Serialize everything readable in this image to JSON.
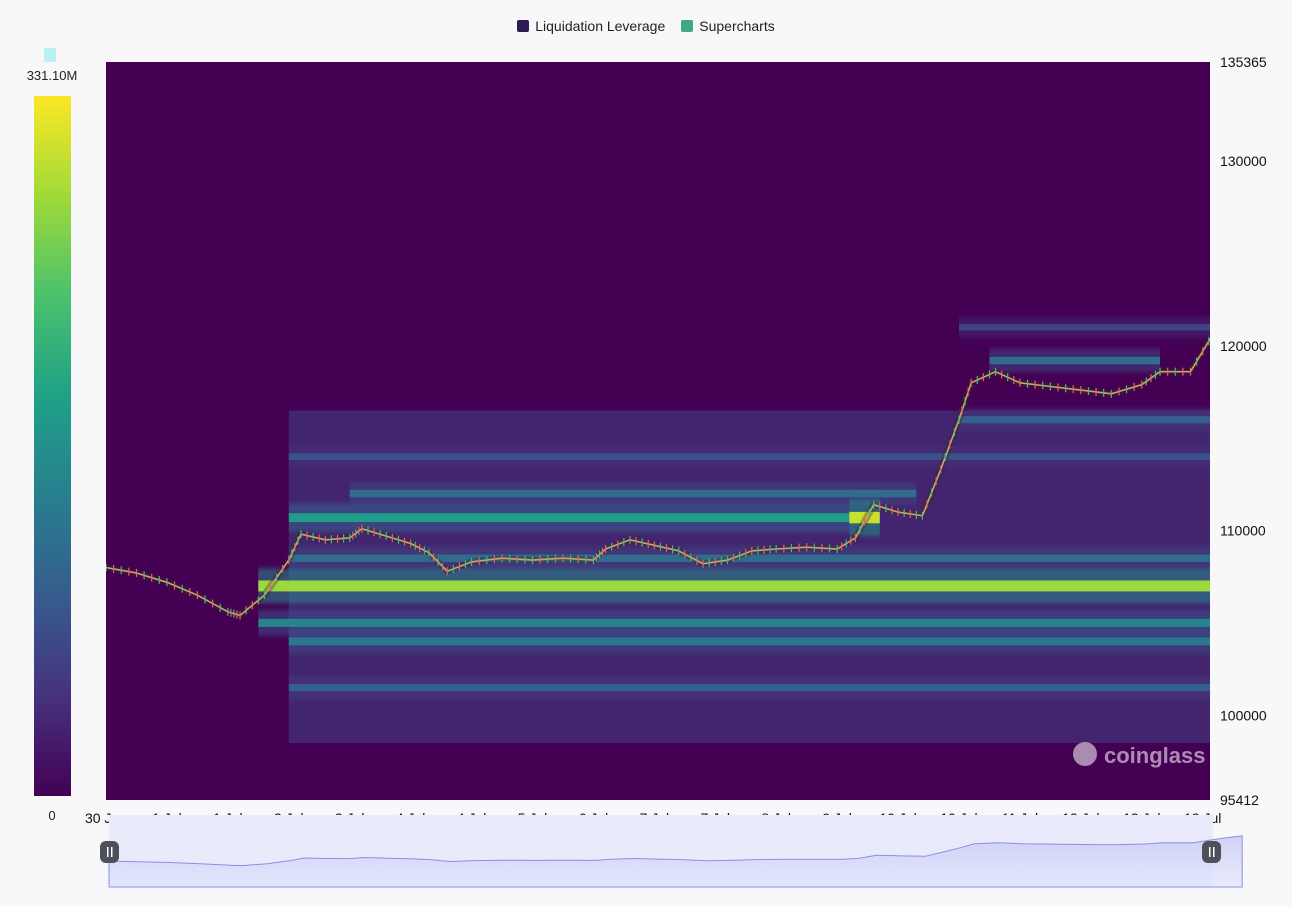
{
  "legend": [
    {
      "label": "Liquidation Leverage",
      "color": "#2e1a54"
    },
    {
      "label": "Supercharts",
      "color": "#3fa886"
    }
  ],
  "colorbar": {
    "max_label": "331.10M",
    "min_label": "0"
  },
  "watermark": "coinglass",
  "chart_data": {
    "type": "heatmap",
    "title": "",
    "xlabel": "",
    "ylabel": "",
    "ylim": [
      95412,
      135365
    ],
    "y_ticks": [
      95412,
      100000,
      110000,
      120000,
      130000,
      135365
    ],
    "x_tick_labels": [
      "30 Jun",
      "1 Jul",
      "1 Jul",
      "2 Jul",
      "3 Jul",
      "4 Jul",
      "4 Jul",
      "5 Jul",
      "6 Jul",
      "7 Jul",
      "7 Jul",
      "8 Jul",
      "9 Jul",
      "10 Jul",
      "10 Jul",
      "11 Jul",
      "12 Jul",
      "13 Jul",
      "13 Jul"
    ],
    "colorscale": [
      "#440154",
      "#46327e",
      "#365c8d",
      "#277f8e",
      "#1fa187",
      "#4ac16d",
      "#a0da39",
      "#fde725"
    ],
    "value_range": [
      0,
      331100000
    ],
    "value_unit": "USD",
    "liquidation_bands": [
      {
        "price": 107000,
        "start_index": 2.5,
        "end_index": 18.6,
        "intensity": 0.85
      },
      {
        "price": 110700,
        "start_index": 12.2,
        "end_index": 12.7,
        "intensity": 0.92
      },
      {
        "price": 110700,
        "start_index": 3.0,
        "end_index": 12.2,
        "intensity": 0.55
      },
      {
        "price": 105000,
        "start_index": 2.5,
        "end_index": 18.6,
        "intensity": 0.45
      },
      {
        "price": 104000,
        "start_index": 3.0,
        "end_index": 18.6,
        "intensity": 0.4
      },
      {
        "price": 112000,
        "start_index": 4.0,
        "end_index": 13.3,
        "intensity": 0.35
      },
      {
        "price": 108500,
        "start_index": 3.0,
        "end_index": 18.6,
        "intensity": 0.35
      },
      {
        "price": 101500,
        "start_index": 3.0,
        "end_index": 18.6,
        "intensity": 0.3
      },
      {
        "price": 114000,
        "start_index": 3.0,
        "end_index": 18.6,
        "intensity": 0.25
      },
      {
        "price": 116000,
        "start_index": 14.0,
        "end_index": 18.6,
        "intensity": 0.3
      },
      {
        "price": 119200,
        "start_index": 14.5,
        "end_index": 17.3,
        "intensity": 0.35
      },
      {
        "price": 121000,
        "start_index": 14.0,
        "end_index": 18.6,
        "intensity": 0.2
      }
    ],
    "price_series": {
      "name": "",
      "points": [
        [
          0.0,
          108000
        ],
        [
          0.5,
          107700
        ],
        [
          1.0,
          107200
        ],
        [
          1.5,
          106500
        ],
        [
          2.0,
          105600
        ],
        [
          2.2,
          105400
        ],
        [
          2.6,
          106500
        ],
        [
          3.0,
          108400
        ],
        [
          3.2,
          109800
        ],
        [
          3.6,
          109500
        ],
        [
          4.0,
          109600
        ],
        [
          4.2,
          110100
        ],
        [
          4.6,
          109700
        ],
        [
          5.0,
          109300
        ],
        [
          5.3,
          108800
        ],
        [
          5.6,
          107800
        ],
        [
          6.0,
          108300
        ],
        [
          6.5,
          108500
        ],
        [
          7.0,
          108400
        ],
        [
          7.5,
          108500
        ],
        [
          8.0,
          108400
        ],
        [
          8.2,
          109000
        ],
        [
          8.6,
          109500
        ],
        [
          9.0,
          109200
        ],
        [
          9.4,
          108900
        ],
        [
          9.8,
          108200
        ],
        [
          10.2,
          108400
        ],
        [
          10.6,
          108900
        ],
        [
          11.0,
          109000
        ],
        [
          11.5,
          109100
        ],
        [
          12.0,
          109000
        ],
        [
          12.3,
          109600
        ],
        [
          12.6,
          111400
        ],
        [
          13.0,
          111000
        ],
        [
          13.4,
          110800
        ],
        [
          13.7,
          113300
        ],
        [
          14.0,
          116000
        ],
        [
          14.2,
          118000
        ],
        [
          14.6,
          118600
        ],
        [
          15.0,
          118000
        ],
        [
          15.5,
          117800
        ],
        [
          16.0,
          117600
        ],
        [
          16.5,
          117400
        ],
        [
          17.0,
          117900
        ],
        [
          17.3,
          118600
        ],
        [
          17.8,
          118600
        ],
        [
          18.2,
          120800
        ],
        [
          18.6,
          122600
        ]
      ]
    }
  }
}
